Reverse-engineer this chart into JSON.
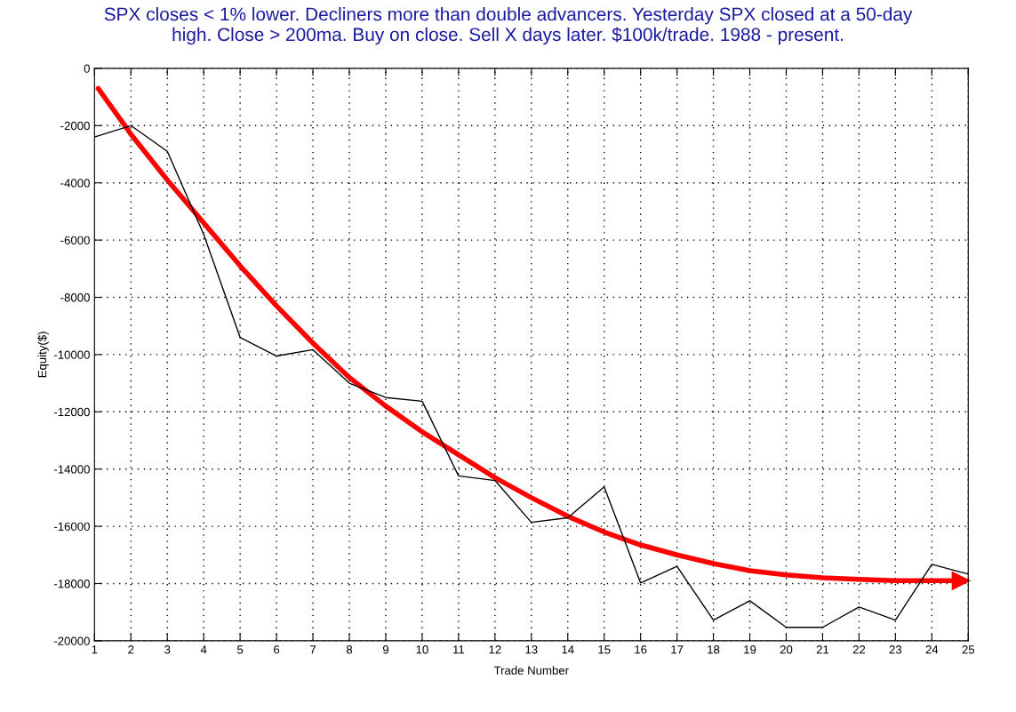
{
  "chart_data": {
    "type": "line",
    "title": "SPX closes < 1% lower. Decliners more than double advancers. Yesterday SPX closed at a 50-day\nhigh. Close > 200ma. Buy on close. Sell X days later. $100k/trade. 1988 - present.",
    "xlabel": "Trade Number",
    "ylabel": "Equity($)",
    "x": [
      1,
      2,
      3,
      4,
      5,
      6,
      7,
      8,
      9,
      10,
      11,
      12,
      13,
      14,
      15,
      16,
      17,
      18,
      19,
      20,
      21,
      22,
      23,
      24,
      25
    ],
    "series": [
      {
        "color": "#000000",
        "values": [
          -2400,
          -2000,
          -2900,
          -5800,
          -9400,
          -10050,
          -9830,
          -11000,
          -11500,
          -11630,
          -14240,
          -14400,
          -15860,
          -15700,
          -14620,
          -17980,
          -17400,
          -19280,
          -18600,
          -19530,
          -19530,
          -18820,
          -19280,
          -17330,
          -17670
        ]
      },
      {
        "color": "#ff0000",
        "x": [
          1.1,
          2,
          3,
          4,
          5,
          6,
          7,
          8,
          9,
          10,
          11,
          12,
          13,
          14,
          15,
          16,
          17,
          18,
          19,
          20,
          21,
          22,
          23,
          24,
          24.8
        ],
        "values": [
          -700,
          -2300,
          -3900,
          -5400,
          -6900,
          -8300,
          -9600,
          -10800,
          -11800,
          -12700,
          -13500,
          -14300,
          -15000,
          -15650,
          -16200,
          -16650,
          -17000,
          -17300,
          -17550,
          -17700,
          -17800,
          -17850,
          -17900,
          -17900,
          -17900
        ]
      }
    ],
    "xlim": [
      1,
      25
    ],
    "ylim": [
      -20000,
      0
    ],
    "xticks": [
      1,
      2,
      3,
      4,
      5,
      6,
      7,
      8,
      9,
      10,
      11,
      12,
      13,
      14,
      15,
      16,
      17,
      18,
      19,
      20,
      21,
      22,
      23,
      24,
      25
    ],
    "yticks": [
      -20000,
      -18000,
      -16000,
      -14000,
      -12000,
      -10000,
      -8000,
      -6000,
      -4000,
      -2000,
      0
    ],
    "grid": true,
    "line_style": "solid",
    "marker": "none"
  }
}
